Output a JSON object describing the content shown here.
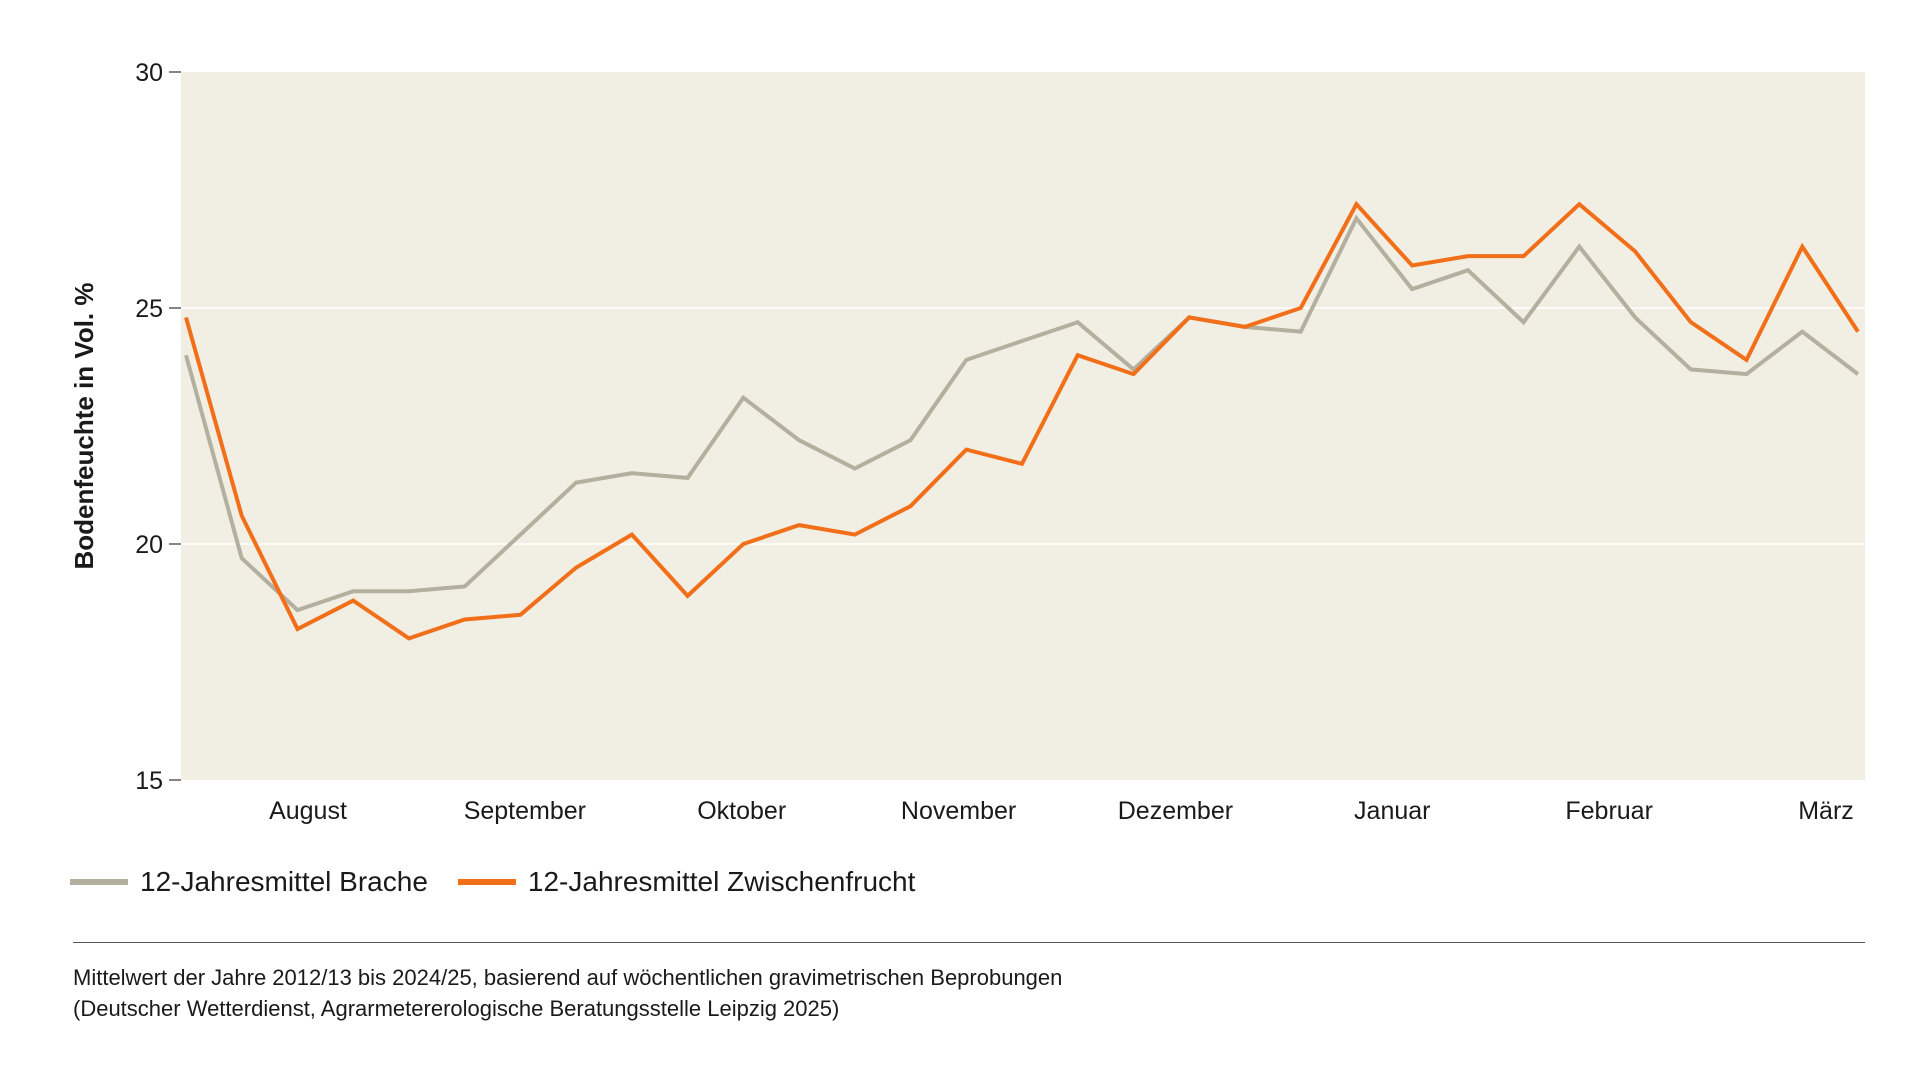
{
  "colors": {
    "plot_background": "#f1eee3",
    "grid": "#ffffff",
    "brache": "#b3b09f",
    "zwischenfrucht": "#f26f1a"
  },
  "chart_data": {
    "type": "line",
    "ylabel": "Bodenfeuchte in Vol. %",
    "ylim": [
      15,
      30
    ],
    "yticks": [
      15,
      20,
      25,
      30
    ],
    "grid": true,
    "month_labels": [
      "August",
      "September",
      "Oktober",
      "November",
      "Dezember",
      "Januar",
      "Februar",
      "März"
    ],
    "series": [
      {
        "name": "12-Jahresmittel Brache",
        "color": "#b3b09f",
        "values": [
          24.0,
          19.7,
          18.6,
          19.0,
          19.0,
          19.1,
          20.2,
          21.3,
          21.5,
          21.4,
          23.1,
          22.2,
          21.6,
          22.2,
          23.9,
          24.3,
          24.7,
          23.7,
          24.8,
          24.6,
          24.5,
          26.9,
          25.4,
          25.8,
          24.7,
          26.3,
          24.8,
          23.7,
          23.6,
          24.5,
          23.6
        ]
      },
      {
        "name": "12-Jahresmittel Zwischenfrucht",
        "color": "#f26f1a",
        "values": [
          24.8,
          20.6,
          18.2,
          18.8,
          18.0,
          18.4,
          18.5,
          19.5,
          20.2,
          18.9,
          20.0,
          20.4,
          20.2,
          20.8,
          22.0,
          21.7,
          24.0,
          23.6,
          24.8,
          24.6,
          25.0,
          27.2,
          25.9,
          26.1,
          26.1,
          27.2,
          26.2,
          24.7,
          23.9,
          26.3,
          24.5
        ]
      }
    ]
  },
  "legend": {
    "items": [
      {
        "label": "12-Jahresmittel Brache",
        "color": "#b3b09f"
      },
      {
        "label": "12-Jahresmittel Zwischenfrucht",
        "color": "#f26f1a"
      }
    ]
  },
  "footer": {
    "line1": "Mittelwert der Jahre 2012/13 bis 2024/25, basierend auf wöchentlichen gravimetrischen Beprobungen",
    "line2": "(Deutscher Wetterdienst, Agrarmetererologische Beratungsstelle Leipzig 2025)"
  }
}
